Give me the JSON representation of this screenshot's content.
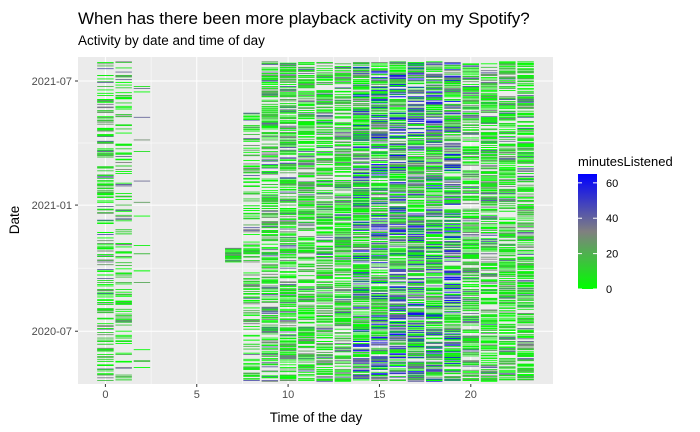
{
  "chart_data": {
    "type": "heatmap",
    "title": "When has there been more playback activity on my Spotify?",
    "subtitle": "Activity by date and time of day",
    "xlabel": "Time of the day",
    "ylabel": "Date",
    "x_range": [
      -1.5,
      24.5
    ],
    "x_ticks": [
      0,
      5,
      10,
      15,
      20
    ],
    "x_tick_labels": [
      "0",
      "5",
      "10",
      "15",
      "20"
    ],
    "y_range": [
      "2020-04-15",
      "2021-08-05"
    ],
    "y_ticks": [
      "2020-07-01",
      "2021-01-01",
      "2021-07-01"
    ],
    "y_tick_labels": [
      "2020-07",
      "2021-01",
      "2021-07"
    ],
    "cell_width_hours": 0.9,
    "date_range": [
      "2020-04-19",
      "2021-07-29"
    ],
    "panel_background": "#ebebeb",
    "grid": true,
    "legend": {
      "title": "minutesListened",
      "placement": "right",
      "min": 0,
      "max": 65,
      "ticks": [
        0,
        20,
        40,
        60
      ],
      "tick_labels": [
        "0",
        "20",
        "40",
        "60"
      ],
      "color_low": "#00ff00",
      "color_mid": "#808080",
      "color_high": "#0000ff"
    },
    "activity_bands": [
      {
        "hours": [
          0,
          0
        ],
        "dates": [
          "2020-04-19",
          "2021-07-29"
        ],
        "density": 0.38
      },
      {
        "hours": [
          1,
          1
        ],
        "dates": [
          "2020-04-19",
          "2021-07-29"
        ],
        "density": 0.25
      },
      {
        "hours": [
          2,
          2
        ],
        "dates": [
          "2020-04-19",
          "2021-07-29"
        ],
        "density": 0.03
      },
      {
        "hours": [
          7,
          7
        ],
        "dates": [
          "2020-10-10",
          "2020-10-30"
        ],
        "density": 0.8
      },
      {
        "hours": [
          8,
          8
        ],
        "dates": [
          "2020-04-19",
          "2021-05-15"
        ],
        "density": 0.35
      },
      {
        "hours": [
          9,
          23
        ],
        "dates": [
          "2020-04-19",
          "2021-07-29"
        ],
        "density": 0.55
      }
    ]
  }
}
